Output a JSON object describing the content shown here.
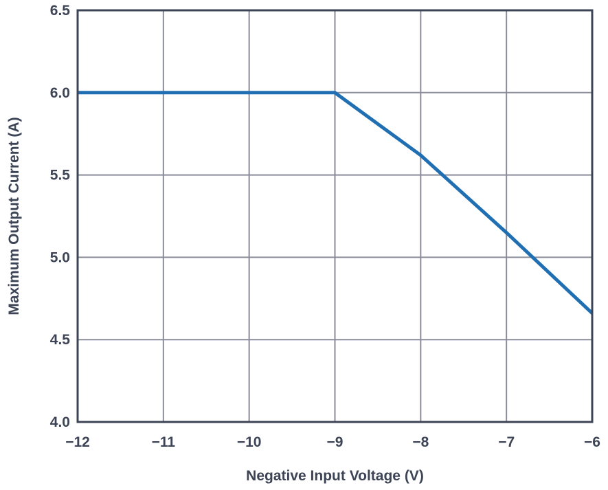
{
  "chart_data": {
    "type": "line",
    "title": "",
    "xlabel": "Negative Input Voltage (V)",
    "ylabel": "Maximum Output Current (A)",
    "xlim": [
      -12,
      -6
    ],
    "ylim": [
      4.0,
      6.5
    ],
    "x_ticks": [
      -12,
      -11,
      -10,
      -9,
      -8,
      -7,
      -6
    ],
    "x_tick_labels": [
      "−12",
      "−11",
      "−10",
      "−9",
      "−8",
      "−7",
      "−6"
    ],
    "y_ticks": [
      4.0,
      4.5,
      5.0,
      5.5,
      6.0,
      6.5
    ],
    "y_tick_labels": [
      "4.0",
      "4.5",
      "5.0",
      "5.5",
      "6.0",
      "6.5"
    ],
    "grid": true,
    "legend": "none",
    "series": [
      {
        "color": "#1f6fb2",
        "x": [
          -12,
          -9,
          -8,
          -7,
          -6
        ],
        "y": [
          6.0,
          6.0,
          5.62,
          5.15,
          4.66
        ]
      }
    ]
  }
}
